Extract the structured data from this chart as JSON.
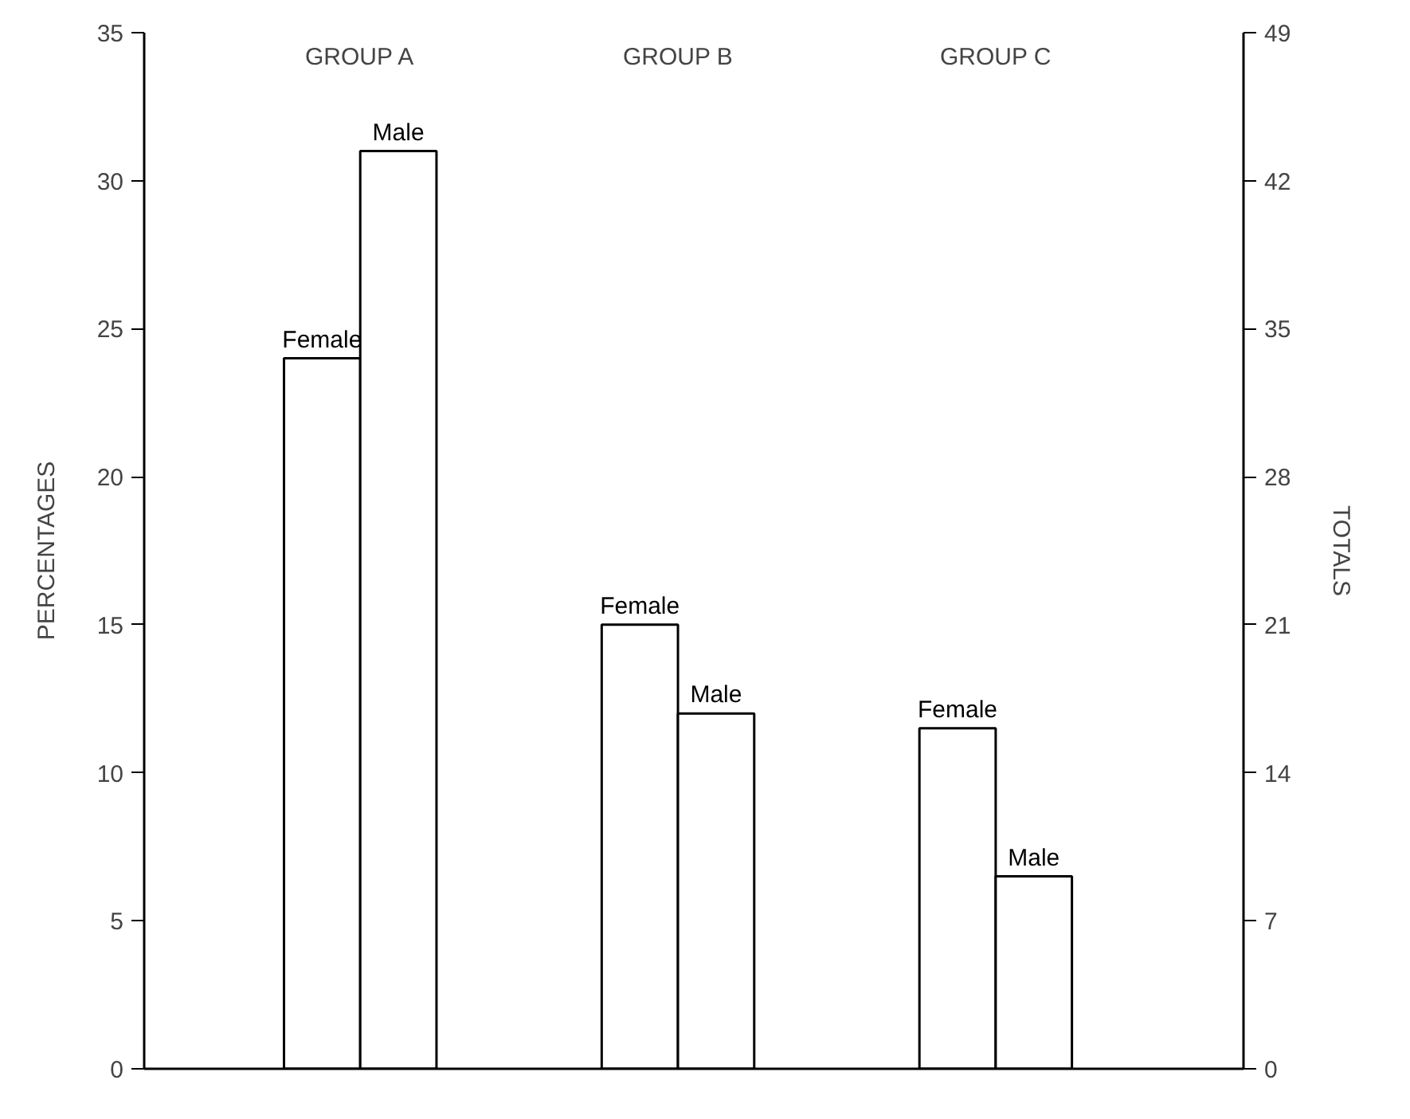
{
  "chart_data": {
    "type": "bar",
    "categories": [
      "GROUP A",
      "GROUP B",
      "GROUP C"
    ],
    "ylabel": "PERCENTAGES",
    "y2label": "TOTALS",
    "ylim": [
      0,
      35
    ],
    "yticks": [
      0,
      5,
      10,
      15,
      20,
      25,
      30,
      35
    ],
    "y2lim": [
      0,
      49
    ],
    "y2ticks": [
      0,
      7,
      14,
      21,
      28,
      35,
      42,
      49
    ],
    "series": [
      {
        "name": "Female",
        "color": "#ffffff",
        "values": [
          24,
          15,
          11.5
        ]
      },
      {
        "name": "Male",
        "color": "#ffffff",
        "values": [
          31,
          12,
          6.5
        ]
      }
    ]
  }
}
